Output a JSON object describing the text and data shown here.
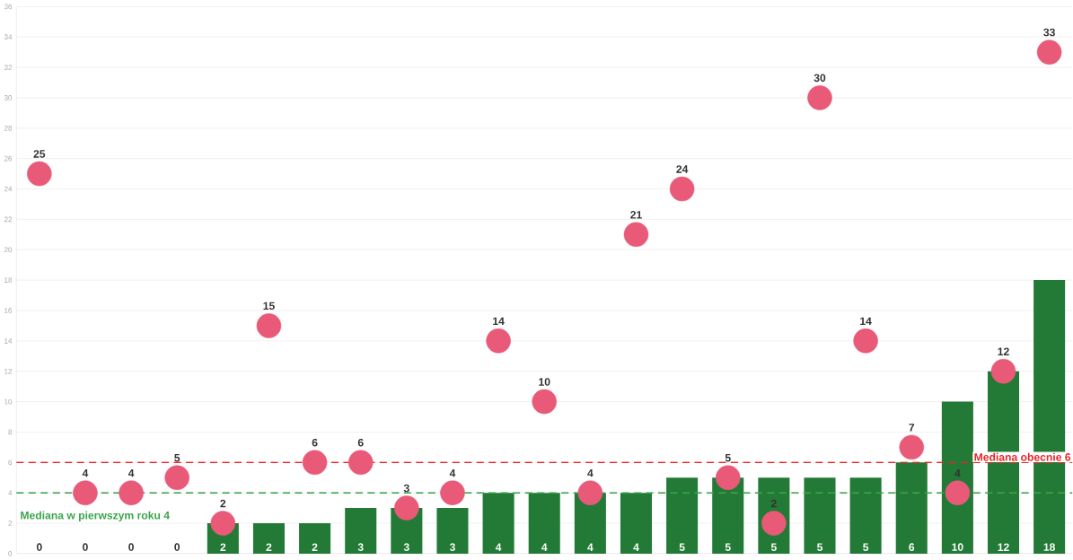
{
  "chart_data": {
    "type": "bar",
    "categories": [
      null,
      null,
      null,
      null,
      null,
      null,
      null,
      null,
      null,
      null,
      null,
      null,
      null,
      null,
      null,
      null,
      null,
      null,
      null,
      null,
      null,
      null,
      null
    ],
    "series": [
      {
        "color": "#237a36",
        "values": [
          0,
          0,
          0,
          0,
          2,
          2,
          2,
          3,
          3,
          3,
          4,
          4,
          4,
          4,
          5,
          5,
          5,
          5,
          5,
          6,
          10,
          12,
          18
        ]
      },
      {
        "type": "scatter",
        "color": "#e85a78",
        "values": [
          25,
          4,
          4,
          5,
          2,
          15,
          6,
          6,
          3,
          4,
          14,
          10,
          4,
          21,
          24,
          5,
          2,
          30,
          14,
          7,
          4,
          12,
          33
        ]
      }
    ],
    "data_labels": true,
    "marker": "circle",
    "ylim": [
      0,
      36
    ],
    "yticks": [
      0,
      2,
      4,
      6,
      8,
      10,
      12,
      14,
      16,
      18,
      20,
      22,
      24,
      26,
      28,
      30,
      32,
      34,
      36
    ],
    "grid": "y",
    "ref_lines": [
      {
        "axis": "y",
        "value": 6,
        "label": "Mediana obecnie 6",
        "color": "#e8272a",
        "line_style": "dashed"
      },
      {
        "axis": "y",
        "value": 4,
        "label": "Mediana w pierwszym roku 4",
        "color": "#3aa64a",
        "line_style": "dashed"
      }
    ]
  }
}
